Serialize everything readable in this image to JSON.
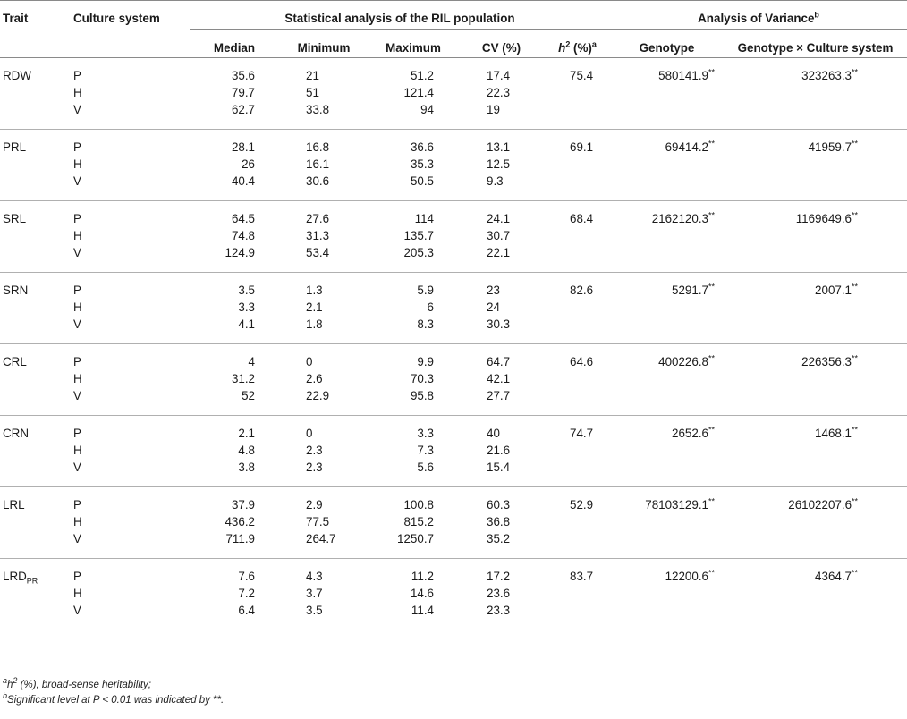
{
  "header": {
    "trait": "Trait",
    "culture_system": "Culture system",
    "group_stats": "Statistical analysis of the RIL population",
    "group_anova": "Analysis of Variance",
    "group_anova_sup": "b",
    "median": "Median",
    "minimum": "Minimum",
    "maximum": "Maximum",
    "cv": "CV (%)",
    "h2_base": "h",
    "h2_exp": "2",
    "h2_unit": " (%)",
    "h2_sup": "a",
    "genotype": "Genotype",
    "gxc": "Genotype × Culture system"
  },
  "rows": [
    {
      "trait": "RDW",
      "trait_sub": "",
      "h2": "75.4",
      "genotype": "580141.9**",
      "gxc": "323263.3**",
      "data": [
        {
          "cs": "P",
          "median": "35.6",
          "min": "21",
          "max": "51.2",
          "cv": "17.4"
        },
        {
          "cs": "H",
          "median": "79.7",
          "min": "51",
          "max": "121.4",
          "cv": "22.3"
        },
        {
          "cs": "V",
          "median": "62.7",
          "min": "33.8",
          "max": "94",
          "cv": "19"
        }
      ]
    },
    {
      "trait": "PRL",
      "trait_sub": "",
      "h2": "69.1",
      "genotype": "69414.2**",
      "gxc": "41959.7**",
      "data": [
        {
          "cs": "P",
          "median": "28.1",
          "min": "16.8",
          "max": "36.6",
          "cv": "13.1"
        },
        {
          "cs": "H",
          "median": "26",
          "min": "16.1",
          "max": "35.3",
          "cv": "12.5"
        },
        {
          "cs": "V",
          "median": "40.4",
          "min": "30.6",
          "max": "50.5",
          "cv": "9.3"
        }
      ]
    },
    {
      "trait": "SRL",
      "trait_sub": "",
      "h2": "68.4",
      "genotype": "2162120.3**",
      "gxc": "1169649.6**",
      "data": [
        {
          "cs": "P",
          "median": "64.5",
          "min": "27.6",
          "max": "114",
          "cv": "24.1"
        },
        {
          "cs": "H",
          "median": "74.8",
          "min": "31.3",
          "max": "135.7",
          "cv": "30.7"
        },
        {
          "cs": "V",
          "median": "124.9",
          "min": "53.4",
          "max": "205.3",
          "cv": "22.1"
        }
      ]
    },
    {
      "trait": "SRN",
      "trait_sub": "",
      "h2": "82.6",
      "genotype": "5291.7**",
      "gxc": "2007.1**",
      "data": [
        {
          "cs": "P",
          "median": "3.5",
          "min": "1.3",
          "max": "5.9",
          "cv": "23"
        },
        {
          "cs": "H",
          "median": "3.3",
          "min": "2.1",
          "max": "6",
          "cv": "24"
        },
        {
          "cs": "V",
          "median": "4.1",
          "min": "1.8",
          "max": "8.3",
          "cv": "30.3"
        }
      ]
    },
    {
      "trait": "CRL",
      "trait_sub": "",
      "h2": "64.6",
      "genotype": "400226.8**",
      "gxc": "226356.3**",
      "data": [
        {
          "cs": "P",
          "median": "4",
          "min": "0",
          "max": "9.9",
          "cv": "64.7"
        },
        {
          "cs": "H",
          "median": "31.2",
          "min": "2.6",
          "max": "70.3",
          "cv": "42.1"
        },
        {
          "cs": "V",
          "median": "52",
          "min": "22.9",
          "max": "95.8",
          "cv": "27.7"
        }
      ]
    },
    {
      "trait": "CRN",
      "trait_sub": "",
      "h2": "74.7",
      "genotype": "2652.6**",
      "gxc": "1468.1**",
      "data": [
        {
          "cs": "P",
          "median": "2.1",
          "min": "0",
          "max": "3.3",
          "cv": "40"
        },
        {
          "cs": "H",
          "median": "4.8",
          "min": "2.3",
          "max": "7.3",
          "cv": "21.6"
        },
        {
          "cs": "V",
          "median": "3.8",
          "min": "2.3",
          "max": "5.6",
          "cv": "15.4"
        }
      ]
    },
    {
      "trait": "LRL",
      "trait_sub": "",
      "h2": "52.9",
      "genotype": "78103129.1**",
      "gxc": "26102207.6**",
      "data": [
        {
          "cs": "P",
          "median": "37.9",
          "min": "2.9",
          "max": "100.8",
          "cv": "60.3"
        },
        {
          "cs": "H",
          "median": "436.2",
          "min": "77.5",
          "max": "815.2",
          "cv": "36.8"
        },
        {
          "cs": "V",
          "median": "711.9",
          "min": "264.7",
          "max": "1250.7",
          "cv": "35.2"
        }
      ]
    },
    {
      "trait": "LRD",
      "trait_sub": "PR",
      "h2": "83.7",
      "genotype": "12200.6**",
      "gxc": "4364.7**",
      "data": [
        {
          "cs": "P",
          "median": "7.6",
          "min": "4.3",
          "max": "11.2",
          "cv": "17.2"
        },
        {
          "cs": "H",
          "median": "7.2",
          "min": "3.7",
          "max": "14.6",
          "cv": "23.6"
        },
        {
          "cs": "V",
          "median": "6.4",
          "min": "3.5",
          "max": "11.4",
          "cv": "23.3"
        }
      ]
    }
  ],
  "footnotes": {
    "a_mark": "a",
    "a_h": "h",
    "a_exp": "2",
    "a_text": " (%), broad-sense heritability;",
    "b_mark": "b",
    "b_text": "Significant level at P < 0.01 was indicated by **."
  }
}
